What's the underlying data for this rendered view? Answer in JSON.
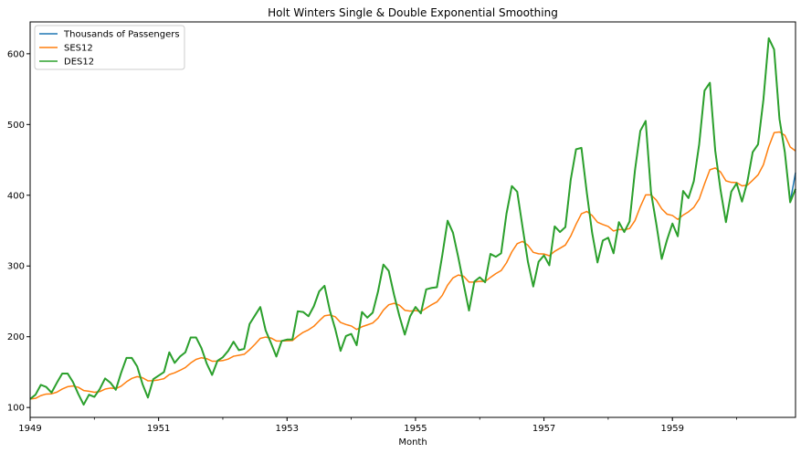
{
  "chart_data": {
    "type": "line",
    "title": "Holt Winters Single & Double Exponential Smoothing",
    "xlabel": "Month",
    "ylabel": "",
    "xlim": [
      "1949-01",
      "1960-12"
    ],
    "ylim": [
      86,
      645
    ],
    "x_ticks": [
      "1949",
      "1951",
      "1953",
      "1955",
      "1957",
      "1959"
    ],
    "y_ticks": [
      100,
      200,
      300,
      400,
      500,
      600
    ],
    "grid": false,
    "legend_position": "top-left",
    "x": [
      "1949-01",
      "1949-02",
      "1949-03",
      "1949-04",
      "1949-05",
      "1949-06",
      "1949-07",
      "1949-08",
      "1949-09",
      "1949-10",
      "1949-11",
      "1949-12",
      "1950-01",
      "1950-02",
      "1950-03",
      "1950-04",
      "1950-05",
      "1950-06",
      "1950-07",
      "1950-08",
      "1950-09",
      "1950-10",
      "1950-11",
      "1950-12",
      "1951-01",
      "1951-02",
      "1951-03",
      "1951-04",
      "1951-05",
      "1951-06",
      "1951-07",
      "1951-08",
      "1951-09",
      "1951-10",
      "1951-11",
      "1951-12",
      "1952-01",
      "1952-02",
      "1952-03",
      "1952-04",
      "1952-05",
      "1952-06",
      "1952-07",
      "1952-08",
      "1952-09",
      "1952-10",
      "1952-11",
      "1952-12",
      "1953-01",
      "1953-02",
      "1953-03",
      "1953-04",
      "1953-05",
      "1953-06",
      "1953-07",
      "1953-08",
      "1953-09",
      "1953-10",
      "1953-11",
      "1953-12",
      "1954-01",
      "1954-02",
      "1954-03",
      "1954-04",
      "1954-05",
      "1954-06",
      "1954-07",
      "1954-08",
      "1954-09",
      "1954-10",
      "1954-11",
      "1954-12",
      "1955-01",
      "1955-02",
      "1955-03",
      "1955-04",
      "1955-05",
      "1955-06",
      "1955-07",
      "1955-08",
      "1955-09",
      "1955-10",
      "1955-11",
      "1955-12",
      "1956-01",
      "1956-02",
      "1956-03",
      "1956-04",
      "1956-05",
      "1956-06",
      "1956-07",
      "1956-08",
      "1956-09",
      "1956-10",
      "1956-11",
      "1956-12",
      "1957-01",
      "1957-02",
      "1957-03",
      "1957-04",
      "1957-05",
      "1957-06",
      "1957-07",
      "1957-08",
      "1957-09",
      "1957-10",
      "1957-11",
      "1957-12",
      "1958-01",
      "1958-02",
      "1958-03",
      "1958-04",
      "1958-05",
      "1958-06",
      "1958-07",
      "1958-08",
      "1958-09",
      "1958-10",
      "1958-11",
      "1958-12",
      "1959-01",
      "1959-02",
      "1959-03",
      "1959-04",
      "1959-05",
      "1959-06",
      "1959-07",
      "1959-08",
      "1959-09",
      "1959-10",
      "1959-11",
      "1959-12",
      "1960-01",
      "1960-02",
      "1960-03",
      "1960-04",
      "1960-05",
      "1960-06",
      "1960-07",
      "1960-08",
      "1960-09",
      "1960-10",
      "1960-11",
      "1960-12"
    ],
    "series": [
      {
        "name": "Thousands of Passengers",
        "color": "#1f77b4",
        "values": [
          112,
          118,
          132,
          129,
          121,
          135,
          148,
          148,
          136,
          119,
          104,
          118,
          115,
          126,
          141,
          135,
          125,
          149,
          170,
          170,
          158,
          133,
          114,
          140,
          145,
          150,
          178,
          163,
          172,
          178,
          199,
          199,
          184,
          162,
          146,
          166,
          171,
          180,
          193,
          181,
          183,
          218,
          230,
          242,
          209,
          191,
          172,
          194,
          196,
          196,
          236,
          235,
          229,
          243,
          264,
          272,
          237,
          211,
          180,
          201,
          204,
          188,
          235,
          227,
          234,
          264,
          302,
          293,
          259,
          229,
          203,
          229,
          242,
          233,
          267,
          269,
          270,
          315,
          364,
          347,
          312,
          274,
          237,
          278,
          284,
          277,
          317,
          313,
          318,
          374,
          413,
          405,
          355,
          306,
          271,
          306,
          315,
          301,
          356,
          348,
          355,
          422,
          465,
          467,
          404,
          347,
          305,
          336,
          340,
          318,
          362,
          348,
          363,
          435,
          491,
          505,
          404,
          359,
          310,
          337,
          360,
          342,
          406,
          396,
          420,
          472,
          548,
          559,
          463,
          407,
          362,
          405,
          417,
          391,
          419,
          461,
          472,
          535,
          622,
          606,
          508,
          461,
          390,
          432
        ]
      },
      {
        "name": "SES12",
        "color": "#ff7f0e",
        "values": [
          112.0,
          112.9,
          116.8,
          119.0,
          119.3,
          121.7,
          126.1,
          129.4,
          130.4,
          128.5,
          124.0,
          123.0,
          121.5,
          122.4,
          126.0,
          127.4,
          126.6,
          130.1,
          136.3,
          141.1,
          143.6,
          142.0,
          137.7,
          138.0,
          139.0,
          140.7,
          146.5,
          149.0,
          152.5,
          156.4,
          162.9,
          168.0,
          170.3,
          169.0,
          165.4,
          165.5,
          166.3,
          168.4,
          172.4,
          173.8,
          175.2,
          181.7,
          189.3,
          197.7,
          199.5,
          198.2,
          194.0,
          194.0,
          194.3,
          194.6,
          200.9,
          206.2,
          209.7,
          214.7,
          222.4,
          229.6,
          230.8,
          228.2,
          220.2,
          217.3,
          215.2,
          210.3,
          214.1,
          216.7,
          219.4,
          226.3,
          237.6,
          245.2,
          247.2,
          244.5,
          237.4,
          236.2,
          237.0,
          235.6,
          240.5,
          245.2,
          249.2,
          258.4,
          273.0,
          283.1,
          287.2,
          285.5,
          277.2,
          277.3,
          278.3,
          278.0,
          283.9,
          289.2,
          293.5,
          304.5,
          320.0,
          331.5,
          334.7,
          329.3,
          319.3,
          317.3,
          317.0,
          314.5,
          320.7,
          325.1,
          329.6,
          342.2,
          359.0,
          373.8,
          377.1,
          371.3,
          361.9,
          358.7,
          355.9,
          349.5,
          351.6,
          351.1,
          353.0,
          364.1,
          383.7,
          400.5,
          400.5,
          393.0,
          380.8,
          373.2,
          371.4,
          365.9,
          371.9,
          376.5,
          382.9,
          394.6,
          416.0,
          436.0,
          438.6,
          432.8,
          420.4,
          418.2,
          418.0,
          413.3,
          414.2,
          421.3,
          428.8,
          443.1,
          468.6,
          488.4,
          489.5,
          484.8,
          468.3,
          462.7
        ]
      },
      {
        "name": "DES12",
        "color": "#2ca02c",
        "values": [
          112,
          118,
          132,
          129,
          121,
          135,
          148,
          148,
          136,
          119,
          104,
          118,
          115,
          126,
          141,
          135,
          125,
          149,
          170,
          170,
          158,
          133,
          114,
          140,
          145,
          150,
          178,
          163,
          172,
          178,
          199,
          199,
          184,
          162,
          146,
          166,
          171,
          180,
          193,
          181,
          183,
          218,
          230,
          242,
          209,
          191,
          172,
          194,
          196,
          196,
          236,
          235,
          229,
          243,
          264,
          272,
          237,
          211,
          180,
          201,
          204,
          188,
          235,
          227,
          234,
          264,
          302,
          293,
          259,
          229,
          203,
          229,
          242,
          233,
          267,
          269,
          270,
          315,
          364,
          347,
          312,
          274,
          237,
          278,
          284,
          277,
          317,
          313,
          318,
          374,
          413,
          405,
          355,
          306,
          271,
          306,
          315,
          301,
          356,
          348,
          355,
          422,
          465,
          467,
          404,
          347,
          305,
          336,
          340,
          318,
          362,
          348,
          363,
          435,
          491,
          505,
          404,
          359,
          310,
          337,
          360,
          342,
          406,
          396,
          420,
          472,
          548,
          559,
          463,
          407,
          362,
          405,
          417,
          391,
          419,
          461,
          472,
          535,
          622,
          606,
          508,
          461,
          390,
          409
        ]
      }
    ]
  }
}
